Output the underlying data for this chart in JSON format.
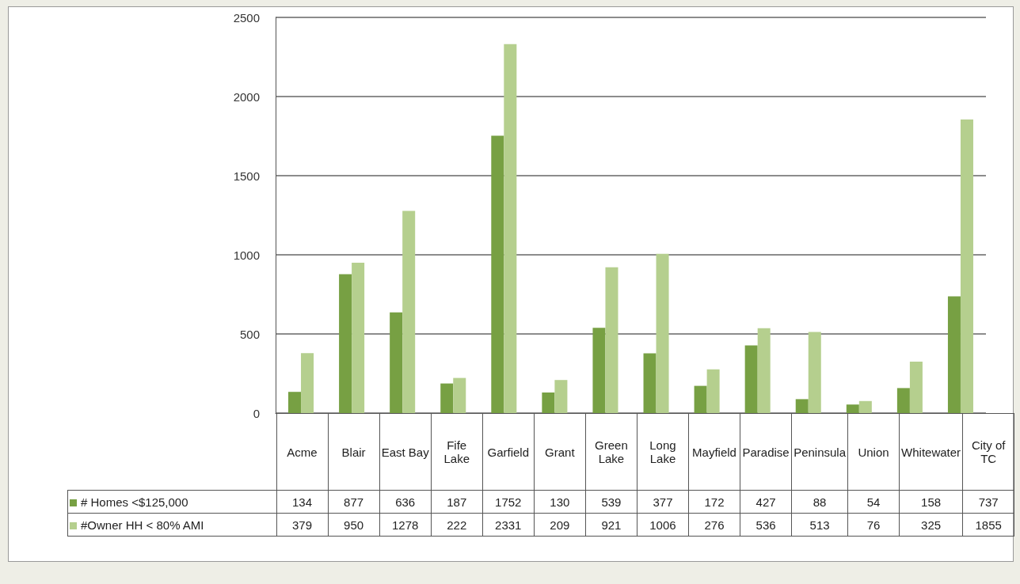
{
  "chart_data": {
    "type": "bar",
    "categories": [
      "Acme",
      "Blair",
      "East Bay",
      "Fife Lake",
      "Garfield",
      "Grant",
      "Green Lake",
      "Long Lake",
      "Mayfield",
      "Paradise",
      "Peninsula",
      "Union",
      "Whitewater",
      "City of TC"
    ],
    "series": [
      {
        "name": "#  Homes <$125,000",
        "color": "#77a043",
        "values": [
          134,
          877,
          636,
          187,
          1752,
          130,
          539,
          377,
          172,
          427,
          88,
          54,
          158,
          737
        ]
      },
      {
        "name": "#Owner HH < 80% AMI",
        "color": "#b5cf8e",
        "values": [
          379,
          950,
          1278,
          222,
          2331,
          209,
          921,
          1006,
          276,
          536,
          513,
          76,
          325,
          1855
        ]
      }
    ],
    "ylim": [
      0,
      2500
    ],
    "yticks": [
      0,
      500,
      1000,
      1500,
      2000,
      2500
    ],
    "grid": "y",
    "legend": "bottom left",
    "data_labels": true
  }
}
